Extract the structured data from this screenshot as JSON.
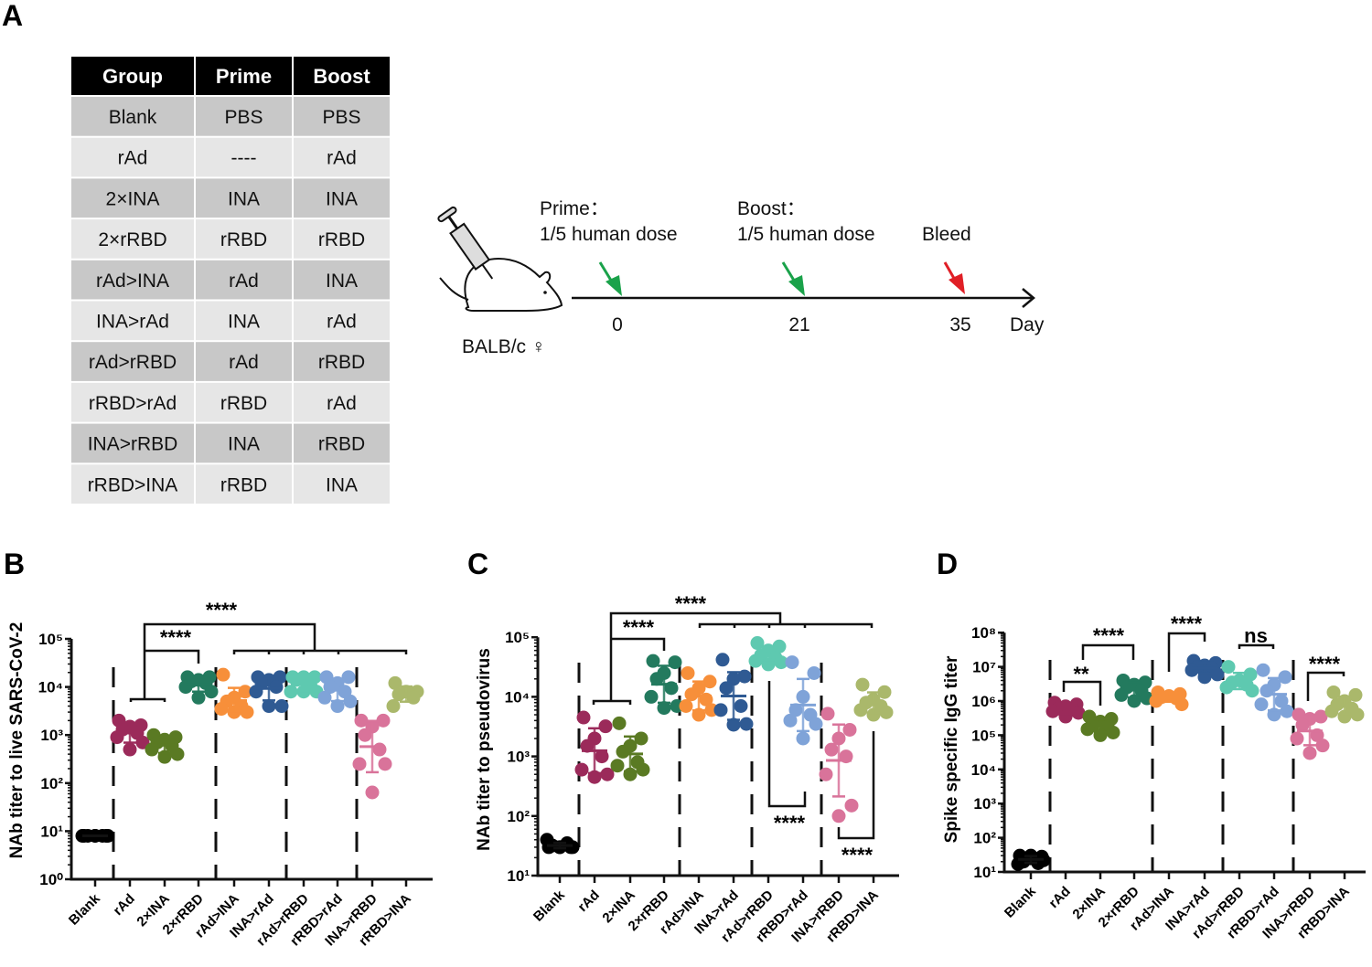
{
  "panel_letters": {
    "a": "A",
    "b": "B",
    "c": "C",
    "d": "D"
  },
  "table": {
    "headers": [
      "Group",
      "Prime",
      "Boost"
    ],
    "rows": [
      [
        "Blank",
        "PBS",
        "PBS"
      ],
      [
        "rAd",
        "----",
        "rAd"
      ],
      [
        "2×INA",
        "INA",
        "INA"
      ],
      [
        "2×rRBD",
        "rRBD",
        "rRBD"
      ],
      [
        "rAd>INA",
        "rAd",
        "INA"
      ],
      [
        "INA>rAd",
        "INA",
        "rAd"
      ],
      [
        "rAd>rRBD",
        "rAd",
        "rRBD"
      ],
      [
        "rRBD>rAd",
        "rRBD",
        "rAd"
      ],
      [
        "INA>rRBD",
        "INA",
        "rRBD"
      ],
      [
        "rRBD>INA",
        "rRBD",
        "INA"
      ]
    ],
    "colors": {
      "header": "#000000",
      "dark_row": "#c8c8c8",
      "light_row": "#e6e6e6"
    }
  },
  "timeline": {
    "prime_title": "Prime：",
    "prime_dose": "1/5 human dose",
    "boost_title": "Boost：",
    "boost_dose": "1/5 human dose",
    "bleed": "Bleed",
    "days": [
      "0",
      "21",
      "35"
    ],
    "unit": "Day",
    "strain": "BALB/c ♀",
    "colors": {
      "injection_arrow": "#1aa24a",
      "bleed_arrow": "#e01f26"
    }
  },
  "group_colors": [
    "#000000",
    "#9b2a5a",
    "#5a7a23",
    "#237a5e",
    "#f78f3a",
    "#2f5a93",
    "#5ec9b0",
    "#7fa3d8",
    "#d9739a",
    "#aab86b"
  ],
  "chart_data": [
    {
      "type": "scatter",
      "ylabel": "NAb titer to live SARS-CoV-2",
      "yscale": "log",
      "ylim": [
        1,
        100000
      ],
      "ytick_labels": [
        "10⁰",
        "10¹",
        "10²",
        "10³",
        "10⁴",
        "10⁵"
      ],
      "categories": [
        "Blank",
        "rAd",
        "2×INA",
        "2×rRBD",
        "rAd>INA",
        "INA>rAd",
        "rAd>rRBD",
        "rRBD>rAd",
        "INA>rRBD",
        "rRBD>INA"
      ],
      "values": [
        [
          8,
          8,
          8,
          8,
          8,
          8,
          8,
          8
        ],
        [
          2000,
          1600,
          1500,
          1300,
          1100,
          900,
          700,
          500
        ],
        [
          1000,
          900,
          800,
          700,
          600,
          500,
          400,
          350
        ],
        [
          16000,
          16000,
          14000,
          13000,
          12000,
          10000,
          8000,
          6000
        ],
        [
          18000,
          8000,
          6000,
          5000,
          4000,
          3500,
          3000,
          3000
        ],
        [
          16000,
          16000,
          14000,
          12000,
          10000,
          8000,
          4000,
          4000
        ],
        [
          16000,
          16000,
          16000,
          14000,
          10000,
          8000,
          8000,
          8000
        ],
        [
          16000,
          16000,
          12000,
          10000,
          8000,
          6000,
          5000,
          4000
        ],
        [
          2000,
          2000,
          1500,
          1000,
          500,
          250,
          250,
          64
        ],
        [
          12000,
          8000,
          8000,
          7000,
          6000,
          4000
        ]
      ],
      "significance": [
        "****",
        "****"
      ]
    },
    {
      "type": "scatter",
      "ylabel": "NAb titer to pseudovirus",
      "yscale": "log",
      "ylim": [
        10,
        100000
      ],
      "ytick_labels": [
        "10¹",
        "10²",
        "10³",
        "10⁴",
        "10⁵"
      ],
      "categories": [
        "Blank",
        "rAd",
        "2×INA",
        "2×rRBD",
        "rAd>INA",
        "INA>rAd",
        "rAd>rRBD",
        "rRBD>rAd",
        "INA>rRBD",
        "rRBD>INA"
      ],
      "values": [
        [
          30,
          30,
          30,
          32,
          35,
          40,
          30,
          30
        ],
        [
          4500,
          3200,
          2000,
          1500,
          1000,
          600,
          500,
          450
        ],
        [
          3600,
          2000,
          1500,
          1200,
          800,
          700,
          600,
          500
        ],
        [
          40000,
          38000,
          25000,
          20000,
          14000,
          10000,
          7000,
          6500
        ],
        [
          25000,
          18000,
          14000,
          11000,
          9000,
          7000,
          6000,
          5000
        ],
        [
          42000,
          22000,
          20000,
          14000,
          7000,
          6000,
          3500,
          3400
        ],
        [
          80000,
          70000,
          60000,
          50000,
          45000,
          40000,
          38000,
          35000
        ],
        [
          38000,
          25000,
          10000,
          6000,
          5000,
          4000,
          3500,
          2000
        ],
        [
          5200,
          2800,
          2000,
          1300,
          1000,
          500,
          150,
          100
        ],
        [
          16000,
          12000,
          9000,
          8000,
          7000,
          6000,
          5500,
          5000
        ]
      ],
      "significance": [
        "****",
        "****",
        "****",
        "****"
      ]
    },
    {
      "type": "scatter",
      "ylabel": "Spike specific IgG titer",
      "yscale": "log",
      "ylim": [
        10,
        100000000
      ],
      "ytick_labels": [
        "10¹",
        "10²",
        "10³",
        "10⁴",
        "10⁵",
        "10⁶",
        "10⁷",
        "10⁸"
      ],
      "categories": [
        "Blank",
        "rAd",
        "2×INA",
        "2×rRBD",
        "rAd>INA",
        "INA>rAd",
        "rAd>rRBD",
        "rRBD>rAd",
        "INA>rRBD",
        "rRBD>INA"
      ],
      "values": [
        [
          30,
          28,
          25,
          20,
          18,
          17,
          22,
          30
        ],
        [
          900000,
          800000,
          700000,
          600000,
          550000,
          500000,
          450000,
          350000
        ],
        [
          350000,
          300000,
          250000,
          200000,
          180000,
          150000,
          120000,
          100000
        ],
        [
          4000000,
          3500000,
          3000000,
          2500000,
          2000000,
          1500000,
          1200000,
          1000000
        ],
        [
          1800000,
          1600000,
          1400000,
          1300000,
          1200000,
          1000000,
          800000
        ],
        [
          15000000,
          13000000,
          11000000,
          10000000,
          9000000,
          8000000,
          6000000,
          5000000
        ],
        [
          10000000,
          6000000,
          4000000,
          3500000,
          3000000,
          2500000,
          2000000
        ],
        [
          8000000,
          5000000,
          3000000,
          2000000,
          1000000,
          800000,
          500000,
          400000
        ],
        [
          400000,
          350000,
          300000,
          200000,
          100000,
          80000,
          50000,
          30000
        ],
        [
          1800000,
          1500000,
          1000000,
          800000,
          600000,
          500000,
          400000,
          350000
        ]
      ],
      "significance": [
        "**",
        "****",
        "****",
        "ns",
        "****"
      ]
    }
  ]
}
